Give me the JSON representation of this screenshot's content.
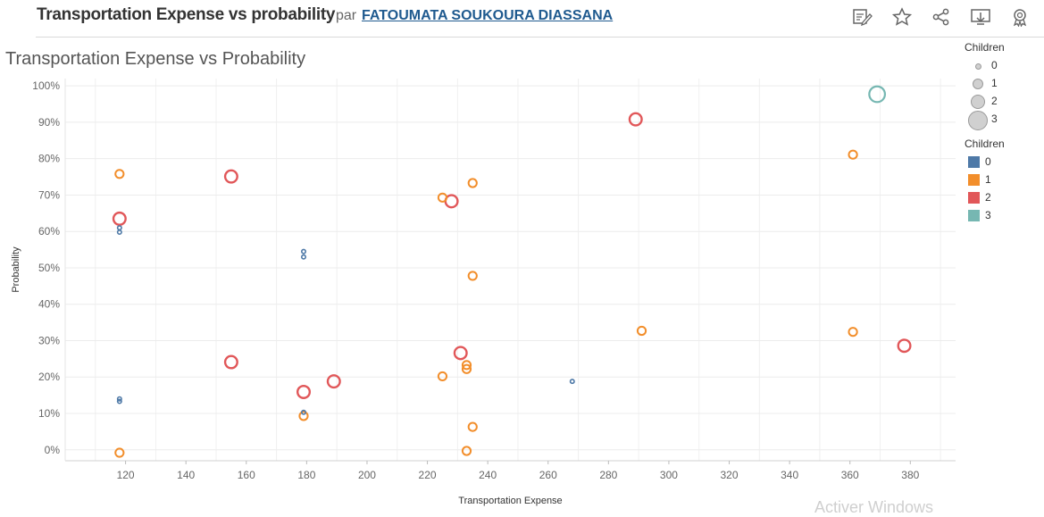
{
  "header": {
    "title": "Transportation Expense vs probability",
    "par": "par",
    "author": "FATOUMATA SOUKOURA DIASSANA",
    "tools": [
      "edit-icon",
      "star-icon",
      "share-icon",
      "download-icon",
      "badge-icon"
    ]
  },
  "sheet_title": "Transportation Expense vs Probability",
  "watermark": "Activer Windows",
  "colors": {
    "0": "#4e79a7",
    "1": "#f28e2b",
    "2": "#e15759",
    "3": "#76b7b2"
  },
  "legend_size": {
    "title": "Children",
    "items": [
      "0",
      "1",
      "2",
      "3"
    ]
  },
  "legend_color": {
    "title": "Children",
    "items": [
      {
        "label": "0",
        "color": "#4e79a7"
      },
      {
        "label": "1",
        "color": "#f28e2b"
      },
      {
        "label": "2",
        "color": "#e15759"
      },
      {
        "label": "3",
        "color": "#76b7b2"
      }
    ]
  },
  "chart_data": {
    "type": "scatter",
    "title": "Transportation Expense vs Probability",
    "xlabel": "Transportation Expense",
    "ylabel": "Probability",
    "xlim": [
      100,
      395
    ],
    "ylim": [
      -3,
      102
    ],
    "xticks": [
      120,
      140,
      160,
      180,
      200,
      220,
      240,
      260,
      280,
      300,
      320,
      340,
      360,
      380
    ],
    "yticks": [
      0,
      10,
      20,
      30,
      40,
      50,
      60,
      70,
      80,
      90,
      100
    ],
    "ytick_labels": [
      "0%",
      "10%",
      "20%",
      "30%",
      "40%",
      "50%",
      "60%",
      "70%",
      "80%",
      "90%",
      "100%"
    ],
    "grid": true,
    "legend": "right",
    "series": [
      {
        "name": "0",
        "points": [
          [
            118,
            61
          ],
          [
            118,
            59.8
          ],
          [
            118,
            14
          ],
          [
            118,
            13.3
          ],
          [
            179,
            54.5
          ],
          [
            179,
            53
          ],
          [
            179,
            10.3
          ],
          [
            268,
            18.8
          ]
        ]
      },
      {
        "name": "1",
        "points": [
          [
            118,
            75.8
          ],
          [
            118,
            -0.8
          ],
          [
            179,
            9.3
          ],
          [
            225,
            69.3
          ],
          [
            235,
            73.3
          ],
          [
            235,
            47.8
          ],
          [
            225,
            20.2
          ],
          [
            233,
            23.3
          ],
          [
            233,
            22.2
          ],
          [
            235,
            6.3
          ],
          [
            233,
            -0.3
          ],
          [
            291,
            32.7
          ],
          [
            361,
            81.1
          ],
          [
            361,
            32.4
          ]
        ]
      },
      {
        "name": "2",
        "points": [
          [
            118,
            63.5
          ],
          [
            155,
            75.1
          ],
          [
            155,
            24.1
          ],
          [
            179,
            15.9
          ],
          [
            189,
            18.8
          ],
          [
            228,
            68.3
          ],
          [
            231,
            26.6
          ],
          [
            289,
            90.8
          ],
          [
            378,
            28.6
          ]
        ]
      },
      {
        "name": "3",
        "points": [
          [
            369,
            97.7
          ]
        ]
      }
    ]
  }
}
